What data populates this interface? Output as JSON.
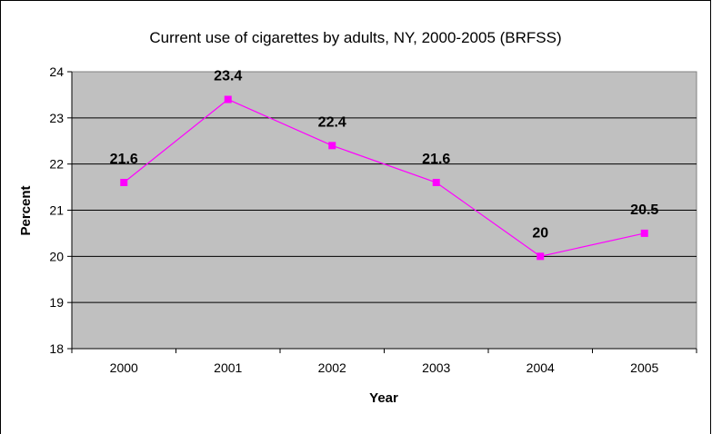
{
  "chart_data": {
    "type": "line",
    "title": "Current use of cigarettes by adults, NY, 2000-2005 (BRFSS)",
    "xlabel": "Year",
    "ylabel": "Percent",
    "categories": [
      "2000",
      "2001",
      "2002",
      "2003",
      "2004",
      "2005"
    ],
    "series": [
      {
        "values": [
          21.6,
          23.4,
          22.4,
          21.6,
          20,
          20.5
        ],
        "data_labels": [
          "21.6",
          "23.4",
          "22.4",
          "21.6",
          "20",
          "20.5"
        ],
        "color": "#ff00ff",
        "marker": "square"
      }
    ],
    "ylim": [
      18,
      24
    ],
    "yticks": [
      "18",
      "19",
      "20",
      "21",
      "22",
      "23",
      "24"
    ],
    "grid": "horizontal",
    "legend": "none",
    "plot_background": "#c0c0c0"
  }
}
